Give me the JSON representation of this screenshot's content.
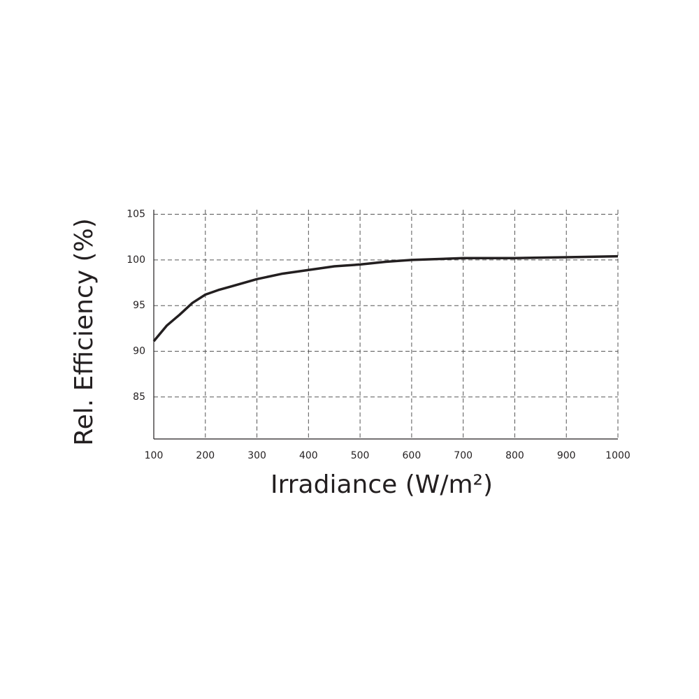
{
  "chart_data": {
    "type": "line",
    "x_label": "Irradiance (W/m²)",
    "y_label": "Rel. Efficiency (%)",
    "x": [
      100,
      125,
      150,
      175,
      200,
      225,
      250,
      300,
      350,
      400,
      450,
      500,
      550,
      600,
      700,
      800,
      900,
      1000
    ],
    "series": [
      {
        "color": "#231f20",
        "values": [
          91.1,
          92.8,
          94.0,
          95.3,
          96.2,
          96.7,
          97.1,
          97.9,
          98.5,
          98.9,
          99.3,
          99.5,
          99.8,
          100.0,
          100.2,
          100.2,
          100.3,
          100.4
        ]
      }
    ],
    "xlim": [
      100,
      1000
    ],
    "xticks": [
      100,
      200,
      300,
      400,
      500,
      600,
      700,
      800,
      900,
      1000
    ],
    "ylim": [
      80.4,
      105.5
    ],
    "yticks": [
      85,
      90,
      95,
      100,
      105
    ],
    "grid": true
  }
}
